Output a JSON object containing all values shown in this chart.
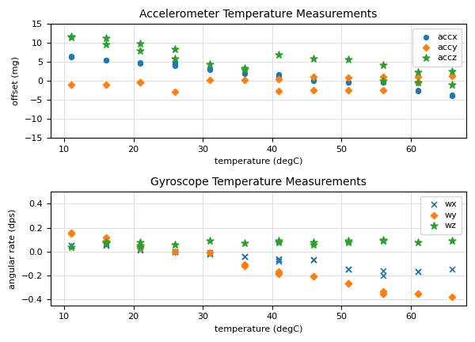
{
  "acc_title": "Accelerometer Temperature Measurements",
  "gyro_title": "Gyroscope Temperature Measurements",
  "acc_xlabel": "temperature (degC)",
  "acc_ylabel": "offset (mg)",
  "gyro_xlabel": "temperature (degC)",
  "gyro_ylabel": "angular rate (dps)",
  "acc_ylim": [
    -15,
    15
  ],
  "gyro_ylim": [
    -0.45,
    0.5
  ],
  "acc_yticks": [
    -15,
    -10,
    -5,
    0,
    5,
    10,
    15
  ],
  "gyro_yticks": [
    -0.4,
    -0.2,
    0.0,
    0.2,
    0.4
  ],
  "xlim": [
    8,
    68
  ],
  "xticks": [
    10,
    20,
    30,
    40,
    50,
    60
  ],
  "accx_color": "#1f77b4",
  "accy_color": "#ff7f0e",
  "accz_color": "#2ca02c",
  "wx_color": "#1f77b4",
  "wy_color": "#ff7f0e",
  "wz_color": "#2ca02c",
  "accx": {
    "temps": [
      11,
      11,
      16,
      16,
      21,
      21,
      26,
      26,
      26,
      31,
      31,
      36,
      36,
      41,
      41,
      41,
      46,
      46,
      51,
      51,
      56,
      56,
      61,
      61,
      66,
      66
    ],
    "values": [
      6.5,
      6.3,
      5.5,
      5.4,
      4.8,
      4.7,
      5.0,
      4.5,
      4.1,
      3.2,
      3.0,
      2.2,
      2.0,
      1.6,
      1.3,
      1.1,
      0.3,
      0.1,
      -0.3,
      -0.5,
      -0.2,
      -0.5,
      -2.5,
      -2.8,
      -3.8,
      -4.0
    ]
  },
  "accy": {
    "temps": [
      11,
      16,
      21,
      21,
      26,
      31,
      36,
      41,
      41,
      46,
      46,
      51,
      51,
      56,
      56,
      61,
      61,
      66
    ],
    "values": [
      -1.0,
      -1.0,
      -0.5,
      -0.5,
      -3.0,
      0.3,
      0.3,
      0.5,
      -2.8,
      -2.5,
      1.0,
      -2.5,
      0.8,
      -2.5,
      1.0,
      -0.5,
      1.0,
      1.2
    ]
  },
  "accz": {
    "temps": [
      11,
      11,
      16,
      16,
      21,
      21,
      26,
      26,
      31,
      36,
      36,
      41,
      46,
      51,
      56,
      56,
      61,
      61,
      66,
      66
    ],
    "values": [
      11.8,
      11.5,
      11.3,
      9.7,
      9.9,
      7.9,
      8.3,
      5.9,
      4.5,
      3.3,
      3.0,
      7.0,
      5.9,
      5.6,
      4.2,
      0.0,
      -0.5,
      2.3,
      2.5,
      -1.0
    ]
  },
  "wx": {
    "temps": [
      11,
      11,
      16,
      16,
      21,
      21,
      26,
      26,
      31,
      31,
      36,
      36,
      41,
      41,
      41,
      46,
      46,
      51,
      51,
      56,
      56,
      61,
      61,
      66
    ],
    "values": [
      0.05,
      0.05,
      0.05,
      0.06,
      0.02,
      0.01,
      0.0,
      0.0,
      -0.02,
      -0.01,
      -0.04,
      -0.04,
      -0.08,
      -0.07,
      -0.06,
      -0.07,
      -0.07,
      -0.15,
      -0.15,
      -0.16,
      -0.2,
      -0.17,
      -0.17,
      -0.15
    ]
  },
  "wy": {
    "temps": [
      11,
      11,
      16,
      16,
      21,
      21,
      26,
      31,
      36,
      36,
      41,
      41,
      41,
      46,
      46,
      51,
      51,
      56,
      56,
      56,
      61,
      61,
      66
    ],
    "values": [
      0.16,
      0.15,
      0.12,
      0.09,
      0.04,
      0.03,
      0.0,
      -0.01,
      -0.11,
      -0.12,
      -0.17,
      -0.18,
      -0.19,
      -0.21,
      -0.21,
      -0.27,
      -0.27,
      -0.33,
      -0.35,
      -0.35,
      -0.35,
      -0.35,
      -0.38
    ]
  },
  "wz": {
    "temps": [
      11,
      16,
      16,
      16,
      21,
      21,
      21,
      26,
      31,
      36,
      41,
      41,
      46,
      46,
      51,
      51,
      56,
      56,
      61,
      66
    ],
    "values": [
      0.04,
      0.07,
      0.07,
      0.08,
      0.08,
      0.05,
      0.04,
      0.06,
      0.09,
      0.07,
      0.08,
      0.09,
      0.08,
      0.06,
      0.09,
      0.08,
      0.1,
      0.09,
      0.08,
      0.09
    ]
  }
}
